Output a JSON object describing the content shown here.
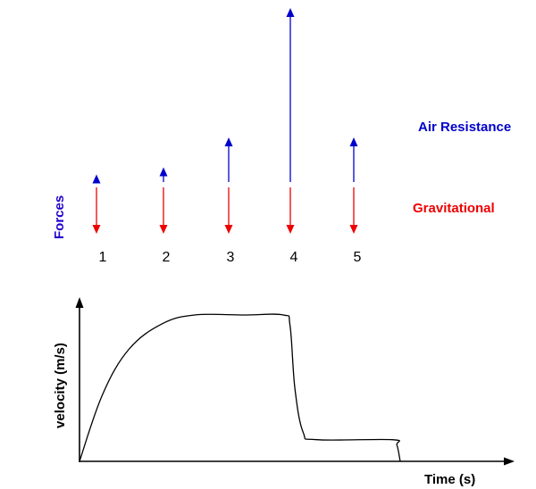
{
  "legend": {
    "air_resistance": "Air Resistance",
    "gravitational": "Gravitational"
  },
  "forces_label": "Forces",
  "colors": {
    "air_resistance": "#0000cc",
    "gravitational": "#ee0000",
    "forces_label": "#2200cc",
    "axis": "#000000"
  },
  "stages": [
    {
      "label": "1",
      "air_resistance": 0.17,
      "gravitational": 1
    },
    {
      "label": "2",
      "air_resistance": 0.33,
      "gravitational": 1
    },
    {
      "label": "3",
      "air_resistance": 1,
      "gravitational": 1
    },
    {
      "label": "4",
      "air_resistance": 3.9,
      "gravitational": 1
    },
    {
      "label": "5",
      "air_resistance": 1,
      "gravitational": 1
    }
  ],
  "chart_data": {
    "type": "line",
    "xlabel": "Time (s)",
    "ylabel": "velocity (m/s)",
    "tick_labels": false,
    "grid": false,
    "xlim": [
      0,
      10
    ],
    "ylim": [
      0,
      10
    ],
    "series": [
      {
        "x": [
          0,
          0.7,
          1.5,
          2.5,
          3.5,
          5.0,
          6.2,
          6.4,
          6.55,
          6.8,
          7.2,
          9.5,
          9.65,
          9.75
        ],
        "y": [
          0,
          3.7,
          6.2,
          7.6,
          8.1,
          8.1,
          8.1,
          7.5,
          4.0,
          1.6,
          1.2,
          1.2,
          0.9,
          0
        ]
      }
    ]
  }
}
